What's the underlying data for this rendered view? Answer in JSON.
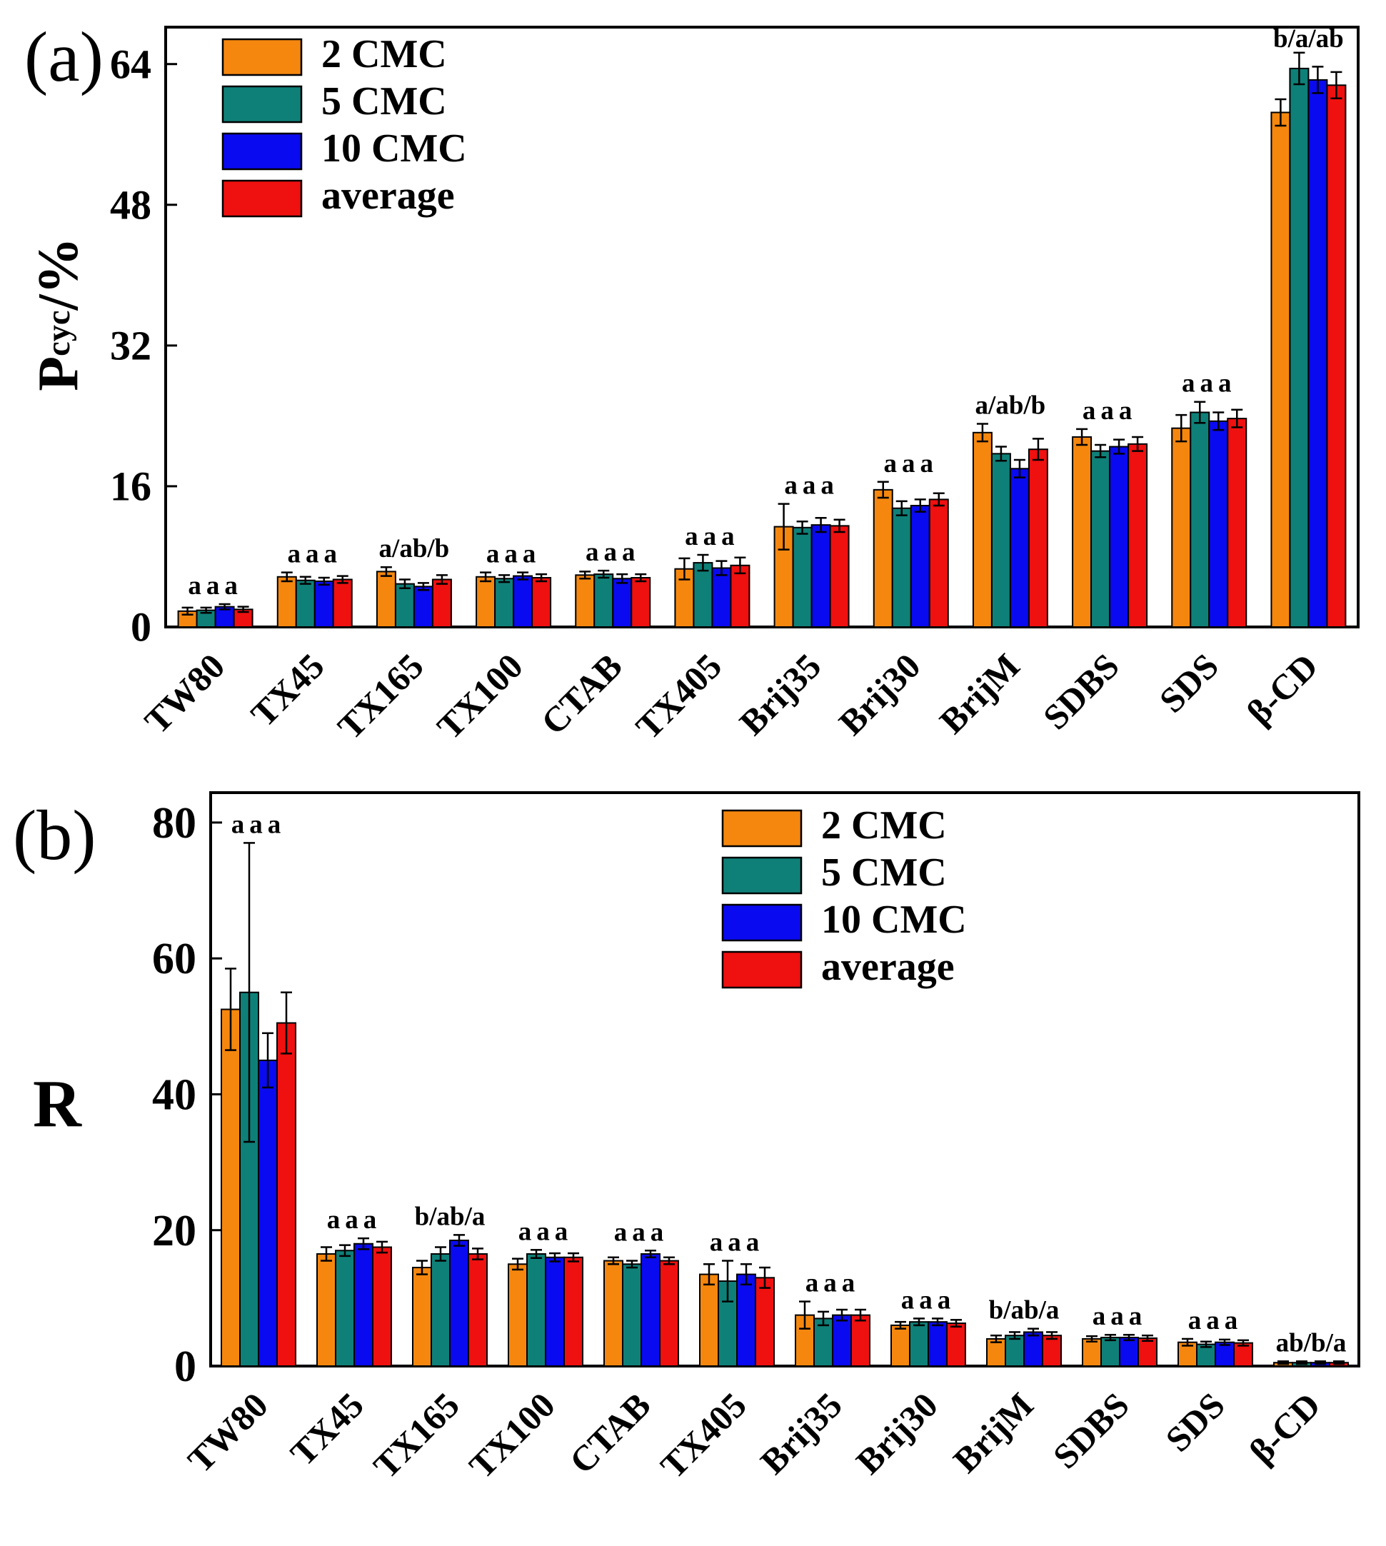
{
  "figure": {
    "background": "#ffffff",
    "panels": [
      {
        "label": "(a)",
        "ylabel": {
          "main": "P",
          "sub": "cyc",
          "rest": " /%"
        }
      },
      {
        "label": "(b)",
        "ylabel": {
          "main": "R",
          "sub": "",
          "rest": ""
        }
      }
    ]
  },
  "chart_data": [
    {
      "type": "bar",
      "panel": "a",
      "title": "(a)",
      "ylabel": "Pcyc /%",
      "ylim": [
        0,
        68.2
      ],
      "yticks": [
        0,
        16,
        32,
        48,
        64
      ],
      "grid": false,
      "legend_position": "top-left",
      "categories": [
        "TW80",
        "TX45",
        "TX165",
        "TX100",
        "CTAB",
        "TX405",
        "Brij35",
        "Brij30",
        "BrijM",
        "SDBS",
        "SDS",
        "β-CD"
      ],
      "series": [
        {
          "name": "2 CMC",
          "color": "#F5870F",
          "values": [
            1.8,
            5.7,
            6.3,
            5.7,
            5.9,
            6.6,
            11.4,
            15.6,
            22.1,
            21.6,
            22.6,
            58.5
          ],
          "errors": [
            0.4,
            0.5,
            0.5,
            0.5,
            0.4,
            1.2,
            2.6,
            0.9,
            1.0,
            0.9,
            1.5,
            1.5
          ]
        },
        {
          "name": "5 CMC",
          "color": "#0F8078",
          "values": [
            1.9,
            5.3,
            4.9,
            5.5,
            6.0,
            7.3,
            11.3,
            13.5,
            19.7,
            20.0,
            24.4,
            63.5
          ],
          "errors": [
            0.3,
            0.4,
            0.5,
            0.4,
            0.4,
            0.9,
            0.7,
            0.8,
            0.8,
            0.7,
            1.2,
            1.8
          ]
        },
        {
          "name": "10 CMC",
          "color": "#0A0AF0",
          "values": [
            2.3,
            5.2,
            4.6,
            5.8,
            5.5,
            6.7,
            11.6,
            13.8,
            18.0,
            20.5,
            23.4,
            62.2
          ],
          "errors": [
            0.3,
            0.4,
            0.4,
            0.4,
            0.5,
            0.8,
            0.8,
            0.7,
            1.0,
            0.8,
            1.0,
            1.5
          ]
        },
        {
          "name": "average",
          "color": "#EF1010",
          "values": [
            2.0,
            5.4,
            5.4,
            5.6,
            5.6,
            7.0,
            11.5,
            14.5,
            20.2,
            20.8,
            23.7,
            61.6
          ],
          "errors": [
            0.3,
            0.4,
            0.5,
            0.4,
            0.4,
            0.9,
            0.7,
            0.7,
            1.2,
            0.8,
            1.0,
            1.5
          ]
        }
      ],
      "group_annotations": [
        "aaa",
        "aaa",
        "a/ab/b",
        "aaa",
        "aaa",
        "aaa",
        "aaa",
        "aaa",
        "a/ab/b",
        "aaa",
        "aaa",
        "b/a/ab"
      ]
    },
    {
      "type": "bar",
      "panel": "b",
      "title": "(b)",
      "ylabel": "R",
      "ylim": [
        0,
        84.4
      ],
      "yticks": [
        0,
        20,
        40,
        60,
        80
      ],
      "grid": false,
      "legend_position": "top-right",
      "categories": [
        "TW80",
        "TX45",
        "TX165",
        "TX100",
        "CTAB",
        "TX405",
        "Brij35",
        "Brij30",
        "BrijM",
        "SDBS",
        "SDS",
        "β-CD"
      ],
      "series": [
        {
          "name": "2 CMC",
          "color": "#F5870F",
          "values": [
            52.5,
            16.5,
            14.5,
            15.0,
            15.5,
            13.5,
            7.5,
            6.0,
            4.0,
            4.0,
            3.5,
            0.5
          ],
          "errors": [
            6.0,
            1.0,
            1.0,
            0.8,
            0.5,
            1.5,
            2.0,
            0.5,
            0.5,
            0.4,
            0.5,
            0.2
          ]
        },
        {
          "name": "5 CMC",
          "color": "#0F8078",
          "values": [
            55.0,
            17.0,
            16.5,
            16.5,
            15.0,
            12.5,
            7.0,
            6.5,
            4.5,
            4.2,
            3.2,
            0.5
          ],
          "errors": [
            22.0,
            0.8,
            1.0,
            0.6,
            0.5,
            3.0,
            1.0,
            0.5,
            0.5,
            0.4,
            0.4,
            0.2
          ]
        },
        {
          "name": "10 CMC",
          "color": "#0A0AF0",
          "values": [
            45.0,
            18.0,
            18.5,
            16.0,
            16.5,
            13.5,
            7.5,
            6.5,
            5.0,
            4.2,
            3.5,
            0.5
          ],
          "errors": [
            4.0,
            0.8,
            0.8,
            0.6,
            0.5,
            1.5,
            0.8,
            0.5,
            0.5,
            0.4,
            0.4,
            0.2
          ]
        },
        {
          "name": "average",
          "color": "#EF1010",
          "values": [
            50.5,
            17.5,
            16.5,
            16.0,
            15.5,
            13.0,
            7.5,
            6.3,
            4.5,
            4.1,
            3.4,
            0.5
          ],
          "errors": [
            4.5,
            0.8,
            0.8,
            0.6,
            0.5,
            1.5,
            0.8,
            0.5,
            0.5,
            0.4,
            0.4,
            0.2
          ]
        }
      ],
      "group_annotations": [
        "aaa",
        "aaa",
        "b/ab/a",
        "aaa",
        "aaa",
        "aaa",
        "aaa",
        "aaa",
        "b/ab/a",
        "aaa",
        "aaa",
        "ab/b/a"
      ]
    }
  ]
}
